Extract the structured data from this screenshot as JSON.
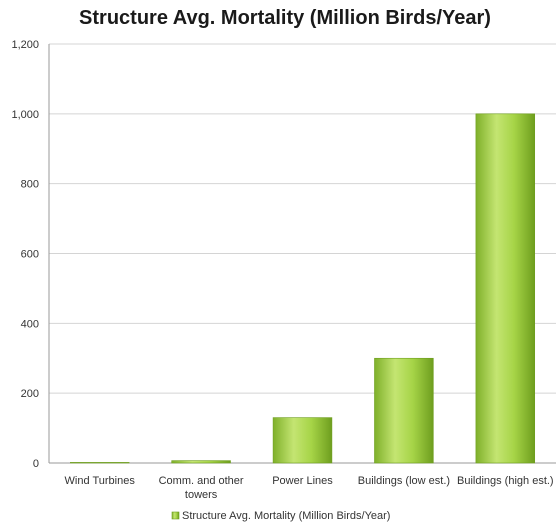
{
  "chart_data": {
    "type": "bar",
    "title": "Structure Avg. Mortality (Million Birds/Year)",
    "xlabel": "",
    "ylabel": "",
    "categories": [
      "Wind Turbines",
      "Comm. and other towers",
      "Power Lines",
      "Buildings (low est.)",
      "Buildings (high est.)"
    ],
    "category_lines": [
      [
        "Wind Turbines"
      ],
      [
        "Comm. and other",
        "towers"
      ],
      [
        "Power Lines"
      ],
      [
        "Buildings (low est.)"
      ],
      [
        "Buildings (high est.)"
      ]
    ],
    "series": [
      {
        "name": "Structure Avg. Mortality (Million Birds/Year)",
        "values": [
          0.1,
          6.8,
          130,
          300,
          1000
        ]
      }
    ],
    "ylim": [
      0,
      1200
    ],
    "yticks": [
      0,
      200,
      400,
      600,
      800,
      1000,
      1200
    ],
    "ytick_labels": [
      "0",
      "200",
      "400",
      "600",
      "800",
      "1,000",
      "1,200"
    ],
    "grid": true,
    "legend_position": "bottom",
    "colors": {
      "bar_light": "#c9e87a",
      "bar_mid": "#9ccc3c",
      "bar_dark": "#6e9e1e",
      "grid": "#d4d4d4",
      "axis": "#9a9a9a"
    }
  }
}
